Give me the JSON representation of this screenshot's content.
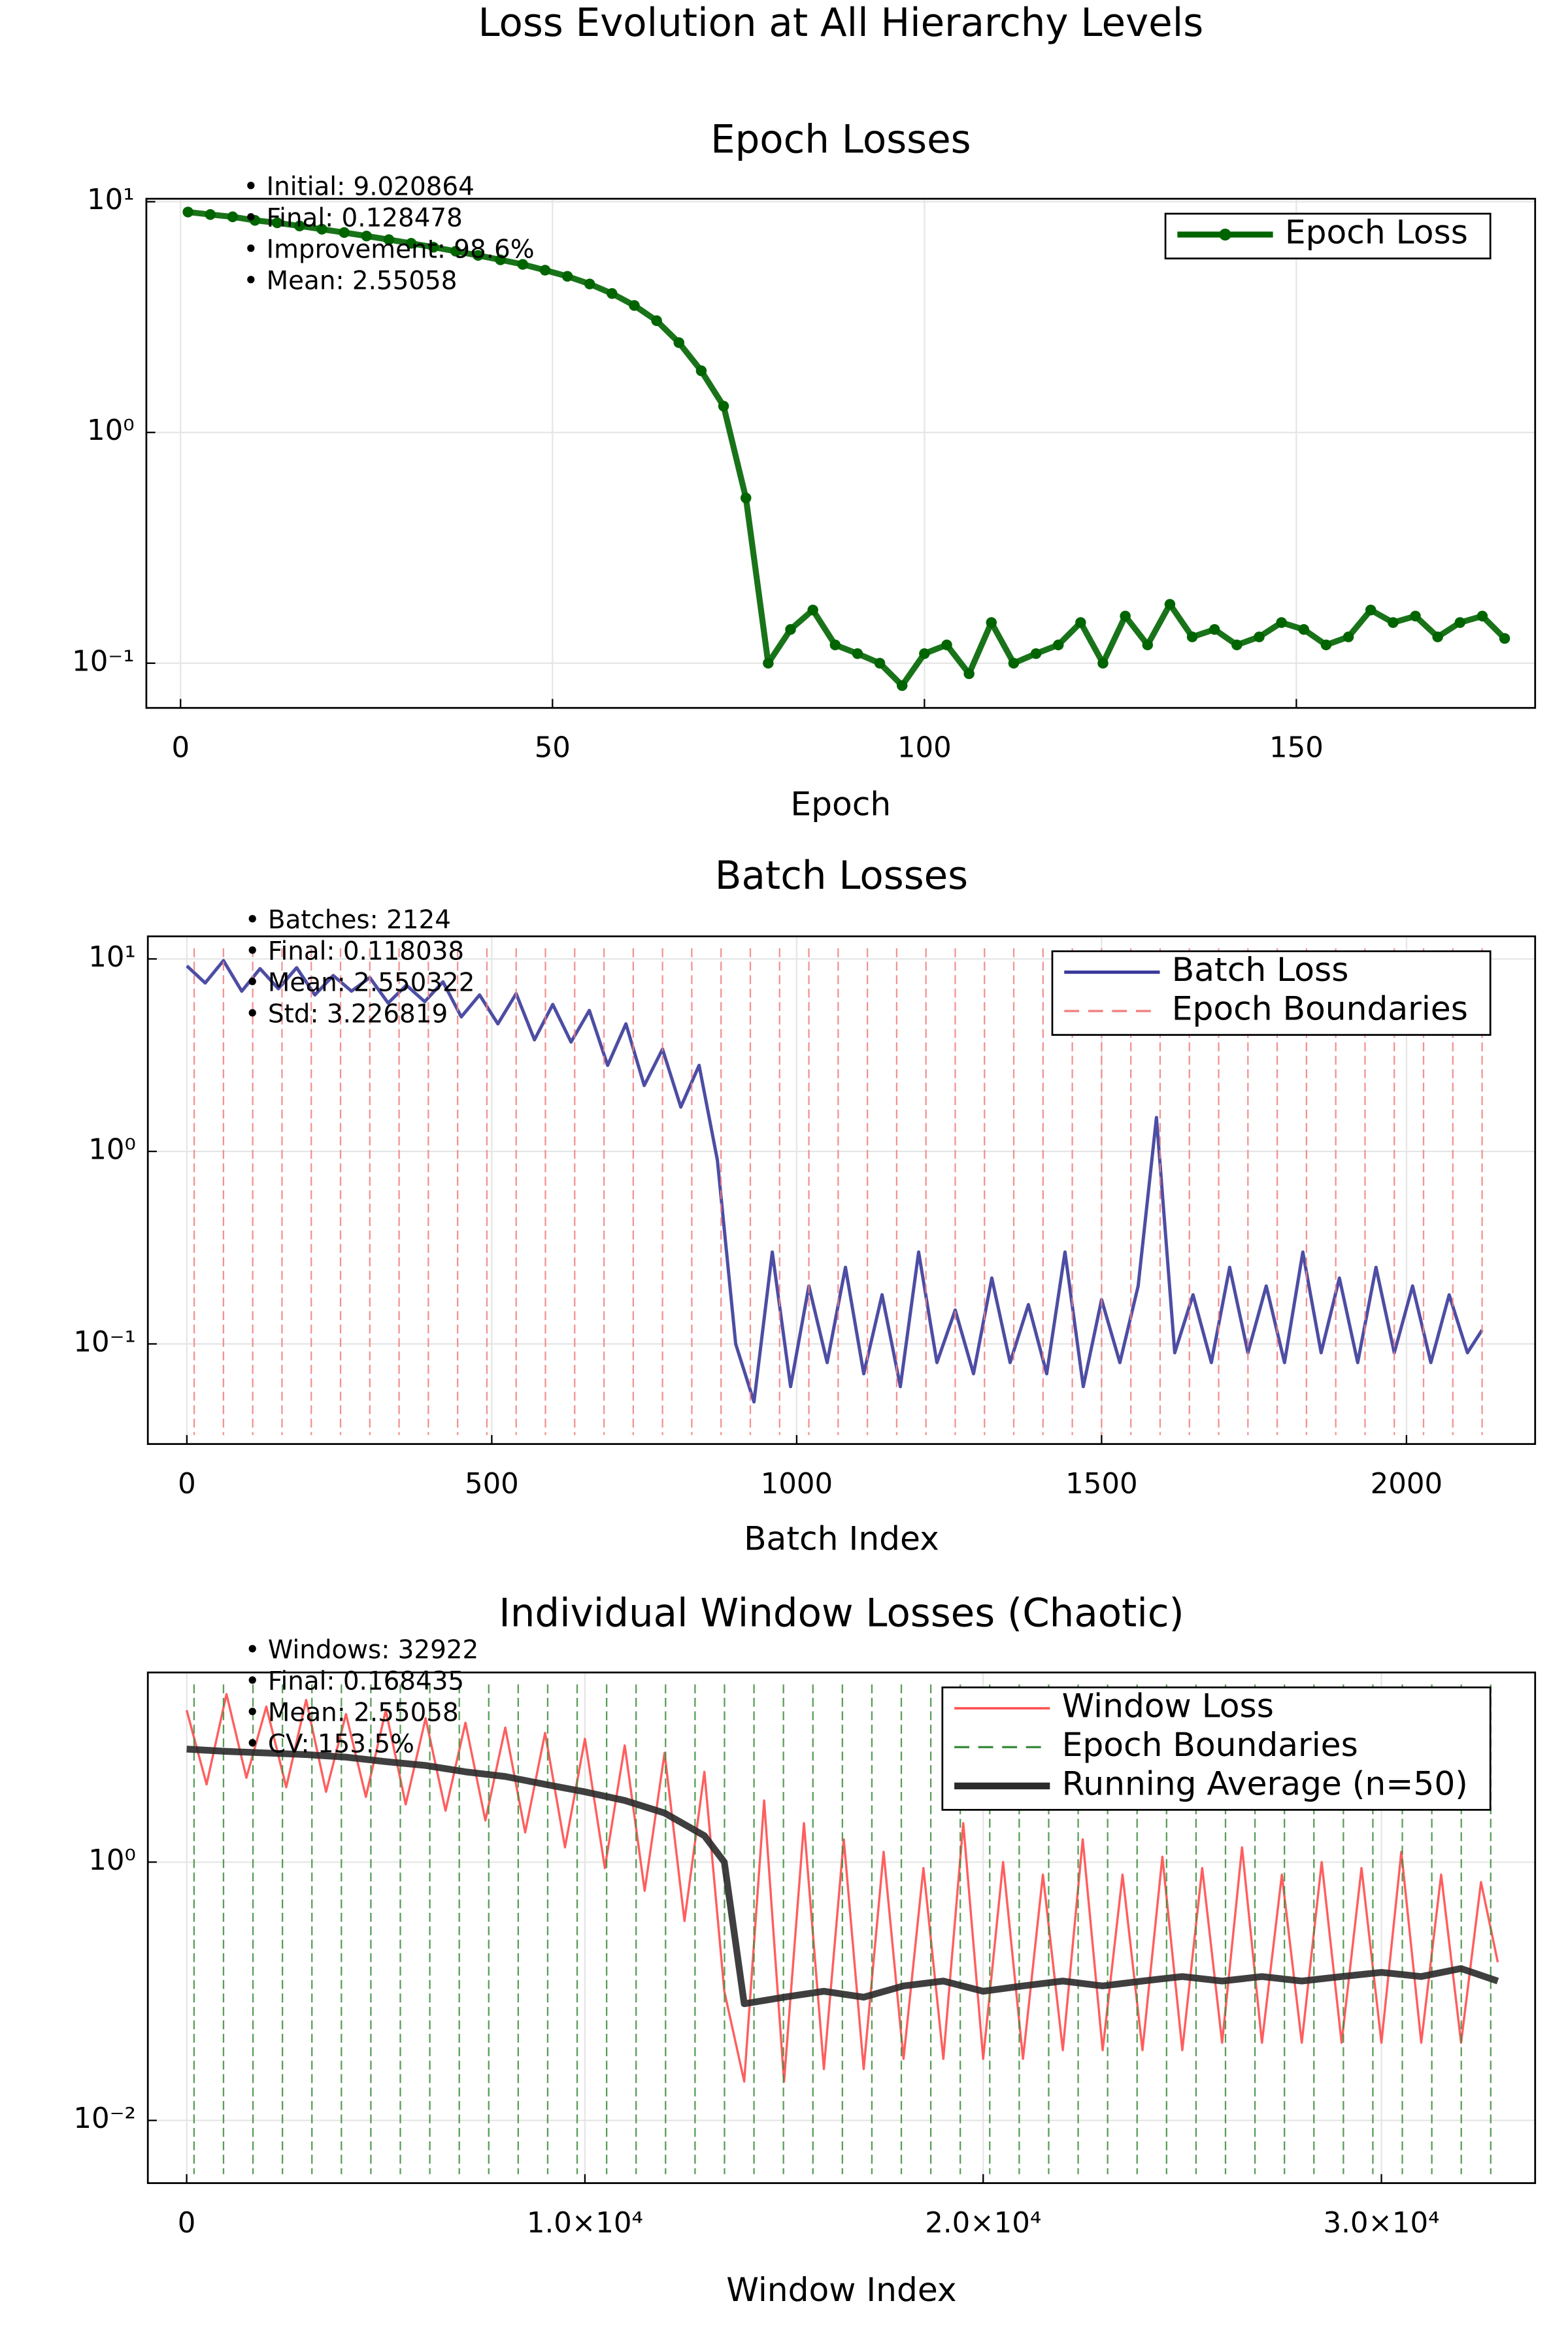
{
  "title": "Loss Evolution at All Hierarchy Levels",
  "chart_data": [
    {
      "type": "line",
      "title": "Epoch Losses",
      "xlabel": "Epoch",
      "yscale": "log",
      "grid": true,
      "legend": "top-right",
      "xlim": [
        -4.6,
        182.1
      ],
      "xticks": [
        0,
        50,
        100,
        150
      ],
      "ylim": [
        0.064,
        10.3
      ],
      "yticks": [
        {
          "value": 0.1,
          "label": "10⁻¹"
        },
        {
          "value": 1,
          "label": "10⁰"
        },
        {
          "value": 10,
          "label": "10¹"
        }
      ],
      "annotations": [
        "• Initial: 9.020864",
        "• Final: 0.128478",
        "• Improvement: 98.6%",
        "• Mean: 2.55058"
      ],
      "annotation_color": "#006400",
      "series": [
        {
          "name": "Epoch Loss",
          "color": "#006400",
          "linewidth": 4,
          "marker": true,
          "x": [
            1,
            4,
            7,
            10,
            13,
            16,
            19,
            22,
            25,
            28,
            31,
            34,
            37,
            40,
            43,
            46,
            49,
            52,
            55,
            58,
            61,
            64,
            67,
            70,
            73,
            76,
            79,
            82,
            85,
            88,
            91,
            94,
            97,
            100,
            103,
            106,
            109,
            112,
            115,
            118,
            121,
            124,
            127,
            130,
            133,
            136,
            139,
            142,
            145,
            148,
            151,
            154,
            157,
            160,
            163,
            166,
            169,
            172,
            175,
            178
          ],
          "values": [
            9.02,
            8.8,
            8.6,
            8.3,
            8.1,
            7.85,
            7.6,
            7.35,
            7.1,
            6.85,
            6.6,
            6.35,
            6.1,
            5.85,
            5.6,
            5.35,
            5.05,
            4.75,
            4.4,
            4.0,
            3.55,
            3.05,
            2.45,
            1.85,
            1.3,
            0.52,
            0.1,
            0.14,
            0.17,
            0.12,
            0.11,
            0.1,
            0.08,
            0.11,
            0.12,
            0.09,
            0.15,
            0.1,
            0.11,
            0.12,
            0.15,
            0.1,
            0.16,
            0.12,
            0.18,
            0.13,
            0.14,
            0.12,
            0.13,
            0.15,
            0.14,
            0.12,
            0.13,
            0.17,
            0.15,
            0.16,
            0.13,
            0.15,
            0.16,
            0.128
          ]
        }
      ]
    },
    {
      "type": "line",
      "title": "Batch Losses",
      "xlabel": "Batch Index",
      "yscale": "log",
      "grid": true,
      "legend": "top-right",
      "xlim": [
        -64,
        2211
      ],
      "xticks": [
        0,
        500,
        1000,
        1500,
        2000
      ],
      "ylim": [
        0.0302,
        13.1
      ],
      "yticks": [
        {
          "value": 0.1,
          "label": "10⁻¹"
        },
        {
          "value": 1,
          "label": "10⁰"
        },
        {
          "value": 10,
          "label": "10¹"
        }
      ],
      "annotations": [
        "• Batches: 2124",
        "• Final: 0.118038",
        "• Mean: 2.550322",
        "• Std: 3.226819"
      ],
      "annotation_color": "#00008b",
      "series": [
        {
          "name": "Batch Loss",
          "color": "#3a3a9a",
          "linewidth": 2.2,
          "x": [
            0,
            30,
            60,
            90,
            120,
            150,
            180,
            210,
            240,
            270,
            300,
            330,
            360,
            390,
            420,
            450,
            480,
            510,
            540,
            570,
            600,
            630,
            660,
            690,
            720,
            750,
            780,
            810,
            840,
            870,
            900,
            930,
            960,
            990,
            1020,
            1050,
            1080,
            1110,
            1140,
            1170,
            1200,
            1230,
            1260,
            1290,
            1320,
            1350,
            1380,
            1410,
            1440,
            1470,
            1500,
            1530,
            1560,
            1590,
            1620,
            1650,
            1680,
            1710,
            1740,
            1770,
            1800,
            1830,
            1860,
            1890,
            1920,
            1950,
            1980,
            2010,
            2040,
            2070,
            2100,
            2124
          ],
          "values": [
            9.2,
            7.5,
            9.8,
            6.8,
            8.9,
            7.0,
            9.0,
            6.5,
            8.2,
            6.8,
            8.0,
            5.9,
            7.3,
            6.0,
            7.6,
            5.0,
            6.5,
            4.6,
            6.6,
            3.8,
            5.8,
            3.7,
            5.4,
            2.8,
            4.6,
            2.2,
            3.4,
            1.7,
            2.8,
            0.9,
            0.1,
            0.05,
            0.3,
            0.06,
            0.2,
            0.08,
            0.25,
            0.07,
            0.18,
            0.06,
            0.3,
            0.08,
            0.15,
            0.07,
            0.22,
            0.08,
            0.16,
            0.07,
            0.3,
            0.06,
            0.17,
            0.08,
            0.2,
            1.5,
            0.09,
            0.18,
            0.08,
            0.25,
            0.09,
            0.2,
            0.08,
            0.3,
            0.09,
            0.22,
            0.08,
            0.25,
            0.09,
            0.2,
            0.08,
            0.18,
            0.09,
            0.118
          ]
        },
        {
          "name": "Epoch Boundaries",
          "color": "#f08080",
          "vline": true,
          "x": [
            12,
            60,
            108,
            156,
            204,
            252,
            300,
            348,
            396,
            444,
            492,
            540,
            588,
            636,
            684,
            732,
            780,
            828,
            876,
            924,
            972,
            1020,
            1068,
            1116,
            1164,
            1212,
            1260,
            1308,
            1356,
            1404,
            1452,
            1500,
            1548,
            1596,
            1644,
            1692,
            1740,
            1788,
            1836,
            1884,
            1932,
            1980,
            2028,
            2076,
            2124
          ]
        }
      ]
    },
    {
      "type": "line",
      "title": "Individual Window Losses (Chaotic)",
      "xlabel": "Window Index",
      "yscale": "log",
      "grid": true,
      "legend": "top-right",
      "xlim": [
        -975,
        33860
      ],
      "xticks": [
        0,
        {
          "value": 10000,
          "label": "1.0×10⁴"
        },
        {
          "value": 20000,
          "label": "2.0×10⁴"
        },
        {
          "value": 30000,
          "label": "3.0×10⁴"
        }
      ],
      "ylim": [
        0.00327,
        29.4
      ],
      "yticks": [
        {
          "value": 0.01,
          "label": "10⁻²"
        },
        {
          "value": 1,
          "label": "10⁰"
        }
      ],
      "annotations": [
        "• Windows: 32922",
        "• Final: 0.168435",
        "• Mean: 2.55058",
        "• CV: 153.5%"
      ],
      "annotation_color": "#ff0000",
      "series": [
        {
          "name": "Window Loss",
          "color": "#ff4d4d",
          "linewidth": 1.5,
          "x": [
            0,
            500,
            1000,
            1500,
            2000,
            2500,
            3000,
            3500,
            4000,
            4500,
            5000,
            5500,
            6000,
            6500,
            7000,
            7500,
            8000,
            8500,
            9000,
            9500,
            10000,
            10500,
            11000,
            11500,
            12000,
            12500,
            13000,
            13500,
            14000,
            14500,
            15000,
            15500,
            16000,
            16500,
            17000,
            17500,
            18000,
            18500,
            19000,
            19500,
            20000,
            20500,
            21000,
            21500,
            22000,
            22500,
            23000,
            23500,
            24000,
            24500,
            25000,
            25500,
            26000,
            26500,
            27000,
            27500,
            28000,
            28500,
            29000,
            29500,
            30000,
            30500,
            31000,
            31500,
            32000,
            32500,
            32922
          ],
          "values": [
            15,
            4,
            20,
            4.5,
            16,
            3.8,
            18,
            3.5,
            14,
            3.2,
            15,
            2.8,
            13,
            2.5,
            12,
            2.1,
            11,
            1.7,
            10,
            1.3,
            9,
            0.9,
            8,
            0.6,
            7,
            0.35,
            5,
            0.1,
            0.02,
            3,
            0.02,
            2,
            0.025,
            1.5,
            0.025,
            1.2,
            0.03,
            0.9,
            0.03,
            2.0,
            0.03,
            1.0,
            0.03,
            0.8,
            0.035,
            1.5,
            0.035,
            0.8,
            0.035,
            1.1,
            0.035,
            0.9,
            0.04,
            1.3,
            0.04,
            0.8,
            0.04,
            1.0,
            0.04,
            0.9,
            0.04,
            1.2,
            0.04,
            0.8,
            0.04,
            0.7,
            0.168
          ]
        },
        {
          "name": "Epoch Boundaries",
          "color": "#3c8c3c",
          "vline": true,
          "x": [
            185,
            925,
            1665,
            2405,
            3145,
            3885,
            4625,
            5365,
            6105,
            6845,
            7585,
            8325,
            9065,
            9805,
            10545,
            11285,
            12025,
            12765,
            13505,
            14245,
            14985,
            15725,
            16465,
            17205,
            17945,
            18685,
            19425,
            20165,
            20905,
            21645,
            22385,
            23125,
            23865,
            24605,
            25345,
            26085,
            26825,
            27565,
            28305,
            29045,
            29785,
            30525,
            31265,
            32005,
            32745
          ]
        },
        {
          "name": "Running Average (n=50)",
          "color": "#2a2a2a",
          "linewidth": 4.5,
          "x": [
            0,
            1000,
            2000,
            3000,
            4000,
            5000,
            6000,
            7000,
            8000,
            9000,
            10000,
            11000,
            12000,
            13000,
            13500,
            14000,
            15000,
            16000,
            17000,
            18000,
            19000,
            20000,
            21000,
            22000,
            23000,
            24000,
            25000,
            26000,
            27000,
            28000,
            29000,
            30000,
            31000,
            32000,
            32922
          ],
          "values": [
            7.5,
            7.2,
            7.0,
            6.8,
            6.5,
            6.0,
            5.6,
            5.0,
            4.6,
            4.0,
            3.5,
            3.0,
            2.4,
            1.6,
            1.0,
            0.08,
            0.09,
            0.1,
            0.09,
            0.11,
            0.12,
            0.1,
            0.11,
            0.12,
            0.11,
            0.12,
            0.13,
            0.12,
            0.13,
            0.12,
            0.13,
            0.14,
            0.13,
            0.15,
            0.12
          ]
        }
      ]
    }
  ]
}
